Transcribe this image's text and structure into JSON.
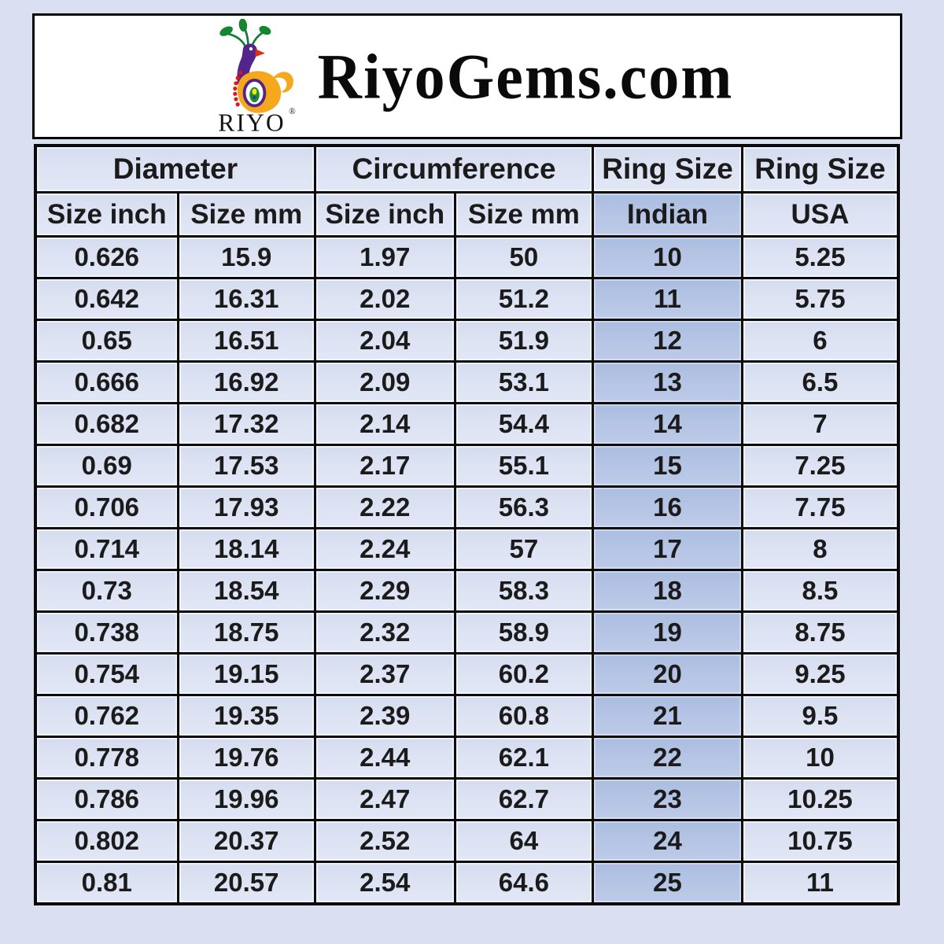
{
  "header": {
    "title": "RiyoGems.com",
    "logo": {
      "wordmark": "RIYO",
      "registered_mark": "®"
    }
  },
  "chart_data": {
    "type": "table",
    "group_headers": [
      {
        "label": "Diameter",
        "colspan": 2
      },
      {
        "label": "Circumference",
        "colspan": 2
      },
      {
        "label": "Ring Size",
        "colspan": 1
      },
      {
        "label": "Ring Size",
        "colspan": 1
      }
    ],
    "columns": [
      "Size inch",
      "Size mm",
      "Size inch",
      "Size mm",
      "Indian",
      "USA"
    ],
    "highlighted_column": "Indian",
    "rows": [
      [
        "0.626",
        "15.9",
        "1.97",
        "50",
        "10",
        "5.25"
      ],
      [
        "0.642",
        "16.31",
        "2.02",
        "51.2",
        "11",
        "5.75"
      ],
      [
        "0.65",
        "16.51",
        "2.04",
        "51.9",
        "12",
        "6"
      ],
      [
        "0.666",
        "16.92",
        "2.09",
        "53.1",
        "13",
        "6.5"
      ],
      [
        "0.682",
        "17.32",
        "2.14",
        "54.4",
        "14",
        "7"
      ],
      [
        "0.69",
        "17.53",
        "2.17",
        "55.1",
        "15",
        "7.25"
      ],
      [
        "0.706",
        "17.93",
        "2.22",
        "56.3",
        "16",
        "7.75"
      ],
      [
        "0.714",
        "18.14",
        "2.24",
        "57",
        "17",
        "8"
      ],
      [
        "0.73",
        "18.54",
        "2.29",
        "58.3",
        "18",
        "8.5"
      ],
      [
        "0.738",
        "18.75",
        "2.32",
        "58.9",
        "19",
        "8.75"
      ],
      [
        "0.754",
        "19.15",
        "2.37",
        "60.2",
        "20",
        "9.25"
      ],
      [
        "0.762",
        "19.35",
        "2.39",
        "60.8",
        "21",
        "9.5"
      ],
      [
        "0.778",
        "19.76",
        "2.44",
        "62.1",
        "22",
        "10"
      ],
      [
        "0.786",
        "19.96",
        "2.47",
        "62.7",
        "23",
        "10.25"
      ],
      [
        "0.802",
        "20.37",
        "2.52",
        "64",
        "24",
        "10.75"
      ],
      [
        "0.81",
        "20.57",
        "2.54",
        "64.6",
        "25",
        "11"
      ]
    ]
  },
  "colors": {
    "page_bg": "#dadff1",
    "header_box_bg": "#ffffff",
    "cell_bg": "#dde3f2",
    "indian_column_bg": "#b5c4e4",
    "border": "#0c0c0c",
    "text": "#1b1b1b",
    "logo_orange": "#f6a81c",
    "logo_purple": "#52258c",
    "logo_green": "#15862f",
    "logo_red": "#e51414"
  }
}
